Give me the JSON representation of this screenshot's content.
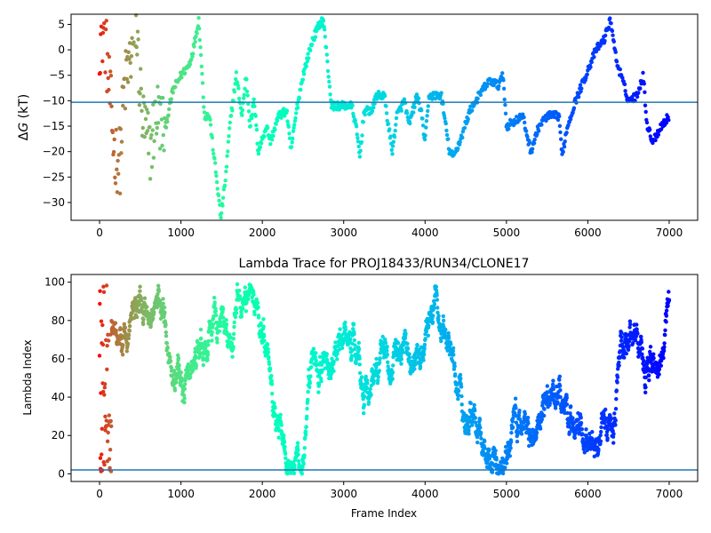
{
  "chart_data": [
    {
      "type": "scatter",
      "title": "",
      "xlabel": "",
      "ylabel_italic": "G",
      "ylabel_prefix": "Δ",
      "ylabel_suffix": " (kT)",
      "xlim": [
        -350,
        7350
      ],
      "ylim": [
        -33.5,
        7
      ],
      "xticks": [
        0,
        1000,
        2000,
        3000,
        4000,
        5000,
        6000,
        7000
      ],
      "yticks": [
        -30,
        -25,
        -20,
        -15,
        -10,
        -5,
        0,
        5
      ],
      "hline": -10.3,
      "grid": false,
      "colormap": "rainbow-reversed",
      "series_trace": [
        [
          0,
          2
        ],
        [
          60,
          4
        ],
        [
          120,
          -8
        ],
        [
          180,
          -20
        ],
        [
          250,
          -22
        ],
        [
          300,
          -8
        ],
        [
          400,
          0
        ],
        [
          440,
          6
        ],
        [
          480,
          -3
        ],
        [
          520,
          -13
        ],
        [
          620,
          -20
        ],
        [
          700,
          -12
        ],
        [
          800,
          -16
        ],
        [
          900,
          -8
        ],
        [
          1000,
          -5
        ],
        [
          1100,
          -3
        ],
        [
          1150,
          0
        ],
        [
          1220,
          6
        ],
        [
          1260,
          -5
        ],
        [
          1290,
          -13
        ],
        [
          1350,
          -13
        ],
        [
          1400,
          -20
        ],
        [
          1450,
          -27
        ],
        [
          1490,
          -33
        ],
        [
          1550,
          -25
        ],
        [
          1600,
          -15
        ],
        [
          1680,
          -5
        ],
        [
          1750,
          -13
        ],
        [
          1800,
          -5
        ],
        [
          1850,
          -15
        ],
        [
          1900,
          -10
        ],
        [
          1950,
          -20
        ],
        [
          2050,
          -15
        ],
        [
          2100,
          -18
        ],
        [
          2200,
          -13
        ],
        [
          2300,
          -12
        ],
        [
          2350,
          -20
        ],
        [
          2420,
          -12
        ],
        [
          2500,
          -5
        ],
        [
          2550,
          -2
        ],
        [
          2620,
          2
        ],
        [
          2700,
          5
        ],
        [
          2750,
          6
        ],
        [
          2850,
          -11
        ],
        [
          3000,
          -11
        ],
        [
          3100,
          -11
        ],
        [
          3150,
          -15
        ],
        [
          3200,
          -21
        ],
        [
          3250,
          -12
        ],
        [
          3350,
          -12
        ],
        [
          3400,
          -9
        ],
        [
          3500,
          -9
        ],
        [
          3550,
          -15
        ],
        [
          3600,
          -20
        ],
        [
          3650,
          -13
        ],
        [
          3750,
          -10
        ],
        [
          3800,
          -15
        ],
        [
          3900,
          -9
        ],
        [
          3950,
          -12
        ],
        [
          4000,
          -18
        ],
        [
          4050,
          -9
        ],
        [
          4200,
          -9
        ],
        [
          4300,
          -20
        ],
        [
          4350,
          -21
        ],
        [
          4450,
          -17
        ],
        [
          4550,
          -12
        ],
        [
          4700,
          -8
        ],
        [
          4800,
          -6
        ],
        [
          4900,
          -7
        ],
        [
          4960,
          -5
        ],
        [
          5000,
          -15
        ],
        [
          5200,
          -13
        ],
        [
          5300,
          -20
        ],
        [
          5400,
          -15
        ],
        [
          5500,
          -13
        ],
        [
          5650,
          -13
        ],
        [
          5680,
          -21
        ],
        [
          5750,
          -15
        ],
        [
          5850,
          -10
        ],
        [
          5950,
          -6
        ],
        [
          6100,
          0
        ],
        [
          6200,
          2
        ],
        [
          6280,
          6
        ],
        [
          6350,
          -2
        ],
        [
          6500,
          -10
        ],
        [
          6600,
          -9
        ],
        [
          6680,
          -5
        ],
        [
          6730,
          -15
        ],
        [
          6800,
          -18
        ],
        [
          6900,
          -15
        ],
        [
          7000,
          -13
        ]
      ]
    },
    {
      "type": "scatter",
      "title": "Lambda Trace for PROJ18433/RUN34/CLONE17",
      "xlabel": "Frame Index",
      "ylabel": "Lambda Index",
      "xlim": [
        -350,
        7350
      ],
      "ylim": [
        -4,
        104
      ],
      "xticks": [
        0,
        1000,
        2000,
        3000,
        4000,
        5000,
        6000,
        7000
      ],
      "yticks": [
        0,
        20,
        40,
        60,
        80,
        100
      ],
      "hline": 2,
      "grid": false,
      "colormap": "rainbow-reversed"
    }
  ]
}
